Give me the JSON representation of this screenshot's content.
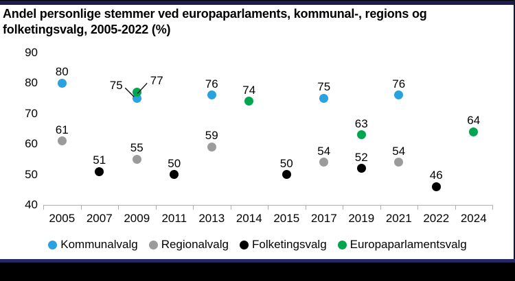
{
  "chart_data": {
    "type": "scatter",
    "title": "Andel personlige stemmer ved europaparlaments, kommunal-, regions og\nfolketingsvalg, 2005-2022 (%)",
    "x_categories": [
      "2005",
      "2007",
      "2009",
      "2011",
      "2013",
      "2014",
      "2015",
      "2017",
      "2019",
      "2021",
      "2022",
      "2024"
    ],
    "ylim": [
      40,
      90
    ],
    "yticks": [
      90,
      80,
      70,
      60,
      50,
      40
    ],
    "grid": false,
    "data_labels": true,
    "legend_position": "bottom",
    "axis_color": "#adadad",
    "series": [
      {
        "name": "Kommunalvalg",
        "color": "#2ba1df",
        "points": [
          {
            "x": "2005",
            "y": 80
          },
          {
            "x": "2009",
            "y": 75,
            "label_placement": "callout-left"
          },
          {
            "x": "2013",
            "y": 76
          },
          {
            "x": "2017",
            "y": 75
          },
          {
            "x": "2021",
            "y": 76
          }
        ]
      },
      {
        "name": "Regionalvalg",
        "color": "#9b9b9b",
        "points": [
          {
            "x": "2005",
            "y": 61
          },
          {
            "x": "2009",
            "y": 55
          },
          {
            "x": "2013",
            "y": 59
          },
          {
            "x": "2017",
            "y": 54
          },
          {
            "x": "2021",
            "y": 54
          }
        ]
      },
      {
        "name": "Folketingsvalg",
        "color": "#000000",
        "points": [
          {
            "x": "2007",
            "y": 51
          },
          {
            "x": "2011",
            "y": 50
          },
          {
            "x": "2015",
            "y": 50
          },
          {
            "x": "2019",
            "y": 52
          },
          {
            "x": "2022",
            "y": 46
          }
        ]
      },
      {
        "name": "Europaparlamentsvalg",
        "color": "#00a64f",
        "points": [
          {
            "x": "2009",
            "y": 77,
            "label_placement": "callout-right"
          },
          {
            "x": "2014",
            "y": 74
          },
          {
            "x": "2019",
            "y": 63
          },
          {
            "x": "2024",
            "y": 64
          }
        ]
      }
    ]
  },
  "frame": {
    "top_band_color": "#201c51",
    "bottom_line_color": "#232964",
    "bottom_band_color": "#000000"
  }
}
